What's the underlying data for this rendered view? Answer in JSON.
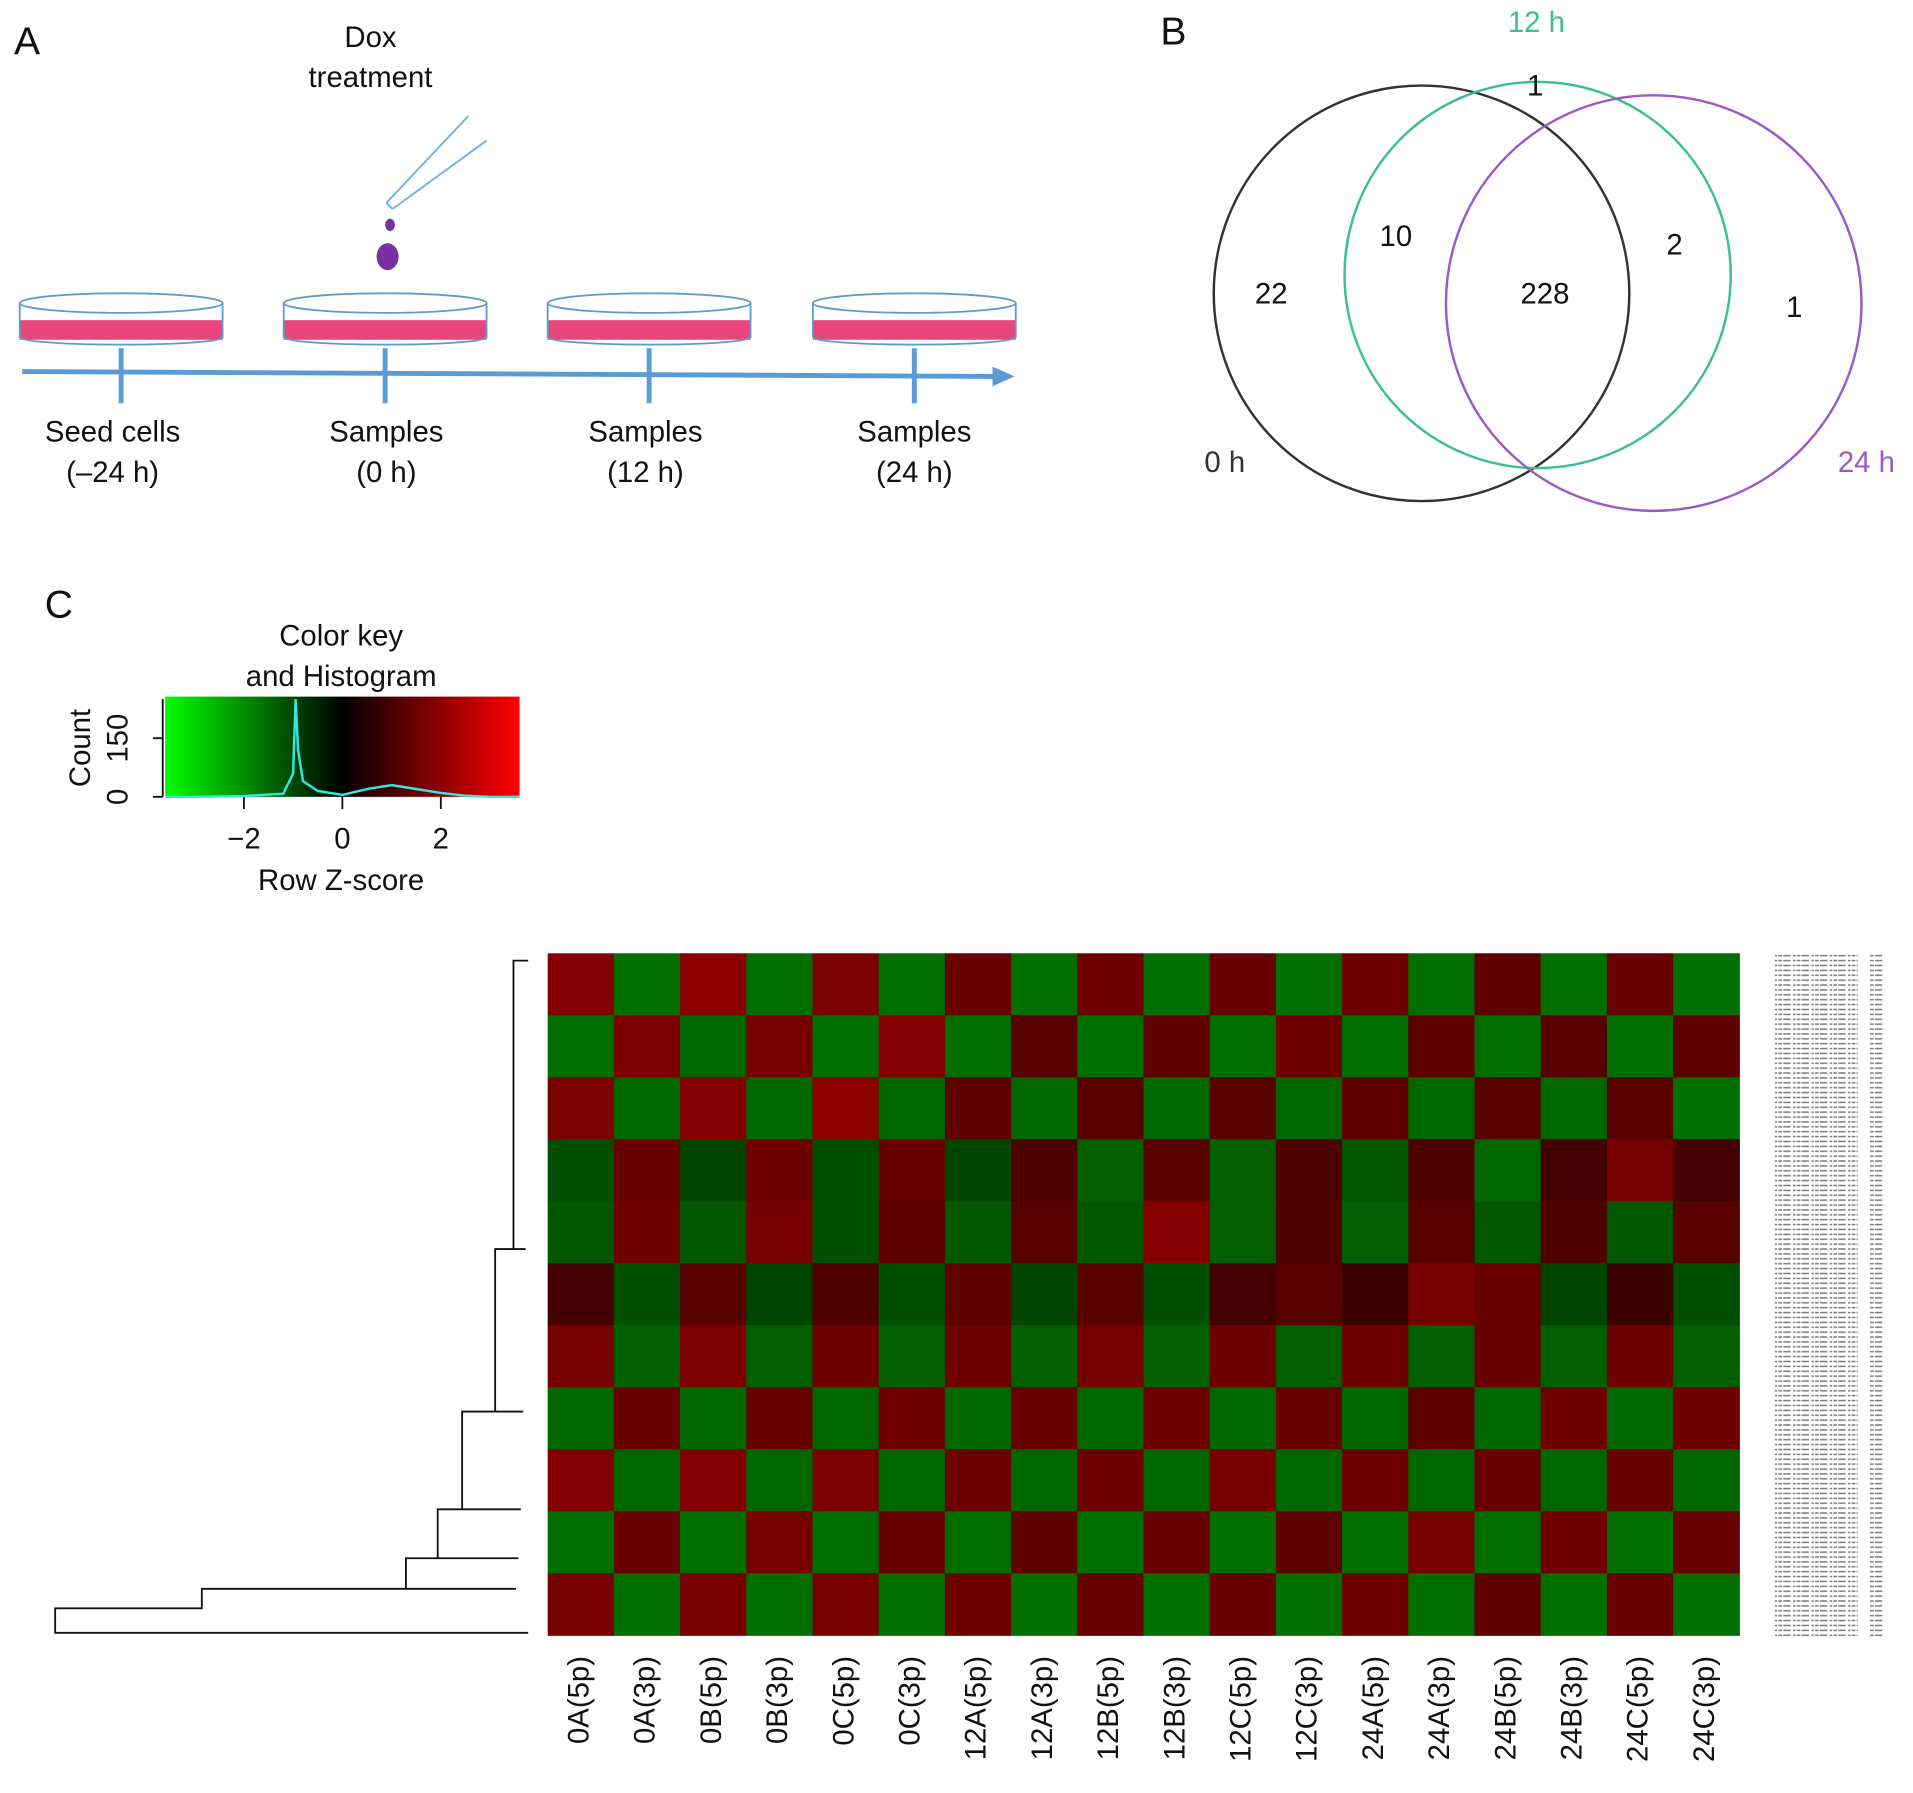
{
  "panels": {
    "a": {
      "letter": "A",
      "treatment": [
        "Dox",
        "treatment"
      ],
      "timepoints": [
        {
          "label": "Seed cells",
          "time": "(–24 h)"
        },
        {
          "label": "Samples",
          "time": "(0 h)"
        },
        {
          "label": "Samples",
          "time": "(12 h)"
        },
        {
          "label": "Samples",
          "time": "(24 h)"
        }
      ]
    },
    "b": {
      "letter": "B",
      "sets": [
        "0 h",
        "12 h",
        "24 h"
      ],
      "set_colors": [
        "#333333",
        "#3cc08a",
        "#9b59c8"
      ],
      "regions": {
        "only_0h": 22,
        "only_12h": 1,
        "only_24h": 1,
        "0h_12h": 10,
        "12h_24h": 2,
        "all": 228
      }
    },
    "c": {
      "letter": "C",
      "key_title": [
        "Color key",
        "and Histogram"
      ],
      "key_xlabel": "Row Z-score",
      "key_ylabel": "Count",
      "key_xlim": [
        -3.6,
        3.6
      ],
      "key_xticks": [
        {
          "value": -2,
          "label": "−2"
        },
        0,
        2
      ],
      "count_lim": [
        0,
        250
      ],
      "count_ticks": [
        0,
        150
      ],
      "hist_x": [
        -3.6,
        -3,
        -2,
        -1.2,
        -1,
        -0.95,
        -0.9,
        -0.8,
        -0.5,
        0,
        0.5,
        1,
        1.5,
        2,
        2.5,
        3,
        3.6
      ],
      "hist_counts": [
        0,
        0,
        2,
        8,
        60,
        250,
        120,
        40,
        15,
        5,
        20,
        30,
        20,
        10,
        3,
        0,
        0
      ],
      "columns": [
        "0A(5p)",
        "0A(3p)",
        "0B(5p)",
        "0B(3p)",
        "0C(5p)",
        "0C(3p)",
        "12A(5p)",
        "12A(3p)",
        "12B(5p)",
        "12B(3p)",
        "12C(5p)",
        "12C(3p)",
        "24A(5p)",
        "24A(3p)",
        "24B(5p)",
        "24B(3p)",
        "24C(5p)",
        "24C(3p)"
      ],
      "zscores": [
        [
          1.2,
          -0.9,
          1.3,
          -0.9,
          1.1,
          -0.9,
          0.8,
          -0.9,
          0.9,
          -0.9,
          0.8,
          -0.9,
          0.9,
          -0.9,
          0.7,
          -0.9,
          0.8,
          -0.9
        ],
        [
          -0.9,
          1.1,
          -0.8,
          1.0,
          -0.9,
          1.2,
          -0.9,
          0.6,
          -0.9,
          0.7,
          -0.9,
          0.9,
          -0.9,
          0.7,
          -0.9,
          0.6,
          -0.9,
          0.7
        ],
        [
          1.1,
          -0.8,
          1.2,
          -0.8,
          1.3,
          -0.8,
          0.7,
          -0.8,
          0.6,
          -0.8,
          0.6,
          -0.8,
          0.7,
          -0.8,
          0.6,
          -0.8,
          0.6,
          -0.9
        ],
        [
          -0.5,
          0.8,
          -0.4,
          0.9,
          -0.5,
          0.8,
          -0.4,
          0.5,
          -0.7,
          0.6,
          -0.7,
          0.5,
          -0.6,
          0.5,
          -0.8,
          0.4,
          1.0,
          0.4
        ],
        [
          -0.6,
          0.9,
          -0.6,
          1.0,
          -0.5,
          0.7,
          -0.6,
          0.6,
          -0.6,
          1.2,
          -0.7,
          0.5,
          -0.7,
          0.6,
          -0.6,
          0.5,
          -0.6,
          0.6
        ],
        [
          0.4,
          -0.5,
          0.6,
          -0.4,
          0.5,
          -0.5,
          0.7,
          -0.4,
          0.6,
          -0.5,
          0.4,
          0.6,
          0.3,
          1.0,
          0.8,
          -0.4,
          0.3,
          -0.5
        ],
        [
          1.0,
          -0.7,
          1.1,
          -0.7,
          0.9,
          -0.7,
          0.9,
          -0.7,
          1.0,
          -0.7,
          0.9,
          -0.7,
          0.9,
          -0.7,
          0.8,
          -0.7,
          0.9,
          -0.7
        ],
        [
          -0.8,
          0.8,
          -0.8,
          0.8,
          -0.8,
          0.9,
          -0.8,
          0.8,
          -0.8,
          0.9,
          -0.8,
          0.8,
          -0.8,
          0.7,
          -0.8,
          0.9,
          -0.8,
          0.9
        ],
        [
          1.2,
          -0.8,
          1.2,
          -0.8,
          1.1,
          -0.8,
          0.9,
          -0.8,
          0.9,
          -0.8,
          1.0,
          -0.8,
          0.9,
          -0.8,
          0.8,
          -0.8,
          0.8,
          -0.8
        ],
        [
          -0.9,
          0.8,
          -0.9,
          1.0,
          -0.9,
          0.8,
          -0.9,
          0.7,
          -0.9,
          0.8,
          -0.9,
          0.7,
          -0.9,
          1.0,
          -0.9,
          0.9,
          -0.9,
          0.8
        ],
        [
          1.0,
          -0.9,
          1.0,
          -0.9,
          1.0,
          -0.9,
          0.9,
          -0.9,
          0.8,
          -0.9,
          0.8,
          -0.9,
          0.9,
          -0.9,
          0.7,
          -0.9,
          0.8,
          -0.9
        ]
      ]
    }
  }
}
